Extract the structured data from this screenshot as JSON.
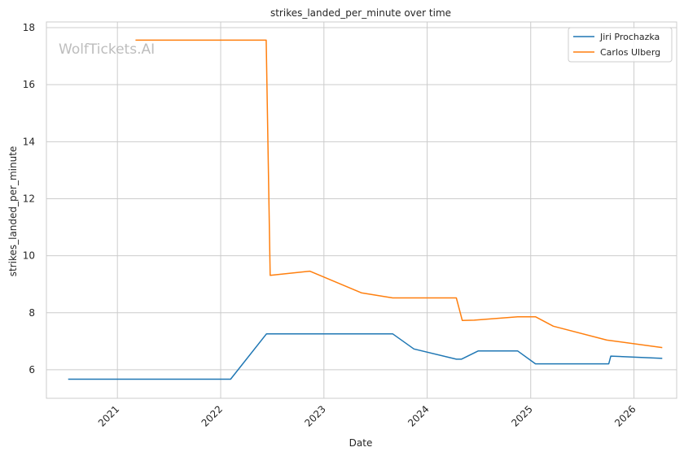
{
  "chart_data": {
    "type": "line",
    "title": "strikes_landed_per_minute over time",
    "xlabel": "Date",
    "ylabel": "strikes_landed_per_minute",
    "xlim": [
      "2020-04-25",
      "2026-06-01"
    ],
    "ylim": [
      5.0,
      18.2
    ],
    "x_ticks": [
      "2021",
      "2022",
      "2023",
      "2024",
      "2025",
      "2026"
    ],
    "y_ticks": [
      6,
      8,
      10,
      12,
      14,
      16,
      18
    ],
    "grid": true,
    "legend_position": "top-right",
    "watermark": "WolfTickets.AI",
    "series": [
      {
        "name": "Jiri Prochazka",
        "color": "#1f77b4",
        "points": [
          {
            "x": "2020-07-11",
            "y": 5.67
          },
          {
            "x": "2022-02-05",
            "y": 5.67
          },
          {
            "x": "2022-06-12",
            "y": 7.26
          },
          {
            "x": "2023-09-01",
            "y": 7.26
          },
          {
            "x": "2023-11-15",
            "y": 6.73
          },
          {
            "x": "2024-04-13",
            "y": 6.37
          },
          {
            "x": "2024-05-01",
            "y": 6.37
          },
          {
            "x": "2024-06-29",
            "y": 6.66
          },
          {
            "x": "2024-11-16",
            "y": 6.66
          },
          {
            "x": "2025-01-18",
            "y": 6.21
          },
          {
            "x": "2025-10-04",
            "y": 6.21
          },
          {
            "x": "2025-10-11",
            "y": 6.48
          },
          {
            "x": "2026-04-11",
            "y": 6.4
          }
        ]
      },
      {
        "name": "Carlos Ulberg",
        "color": "#ff7f0e",
        "points": [
          {
            "x": "2021-03-06",
            "y": 17.56
          },
          {
            "x": "2022-06-11",
            "y": 17.56
          },
          {
            "x": "2022-06-25",
            "y": 9.31
          },
          {
            "x": "2022-11-12",
            "y": 9.46
          },
          {
            "x": "2023-05-13",
            "y": 8.7
          },
          {
            "x": "2023-09-01",
            "y": 8.52
          },
          {
            "x": "2024-04-13",
            "y": 8.52
          },
          {
            "x": "2024-05-04",
            "y": 7.73
          },
          {
            "x": "2024-06-15",
            "y": 7.74
          },
          {
            "x": "2024-11-16",
            "y": 7.86
          },
          {
            "x": "2025-01-18",
            "y": 7.86
          },
          {
            "x": "2025-03-22",
            "y": 7.53
          },
          {
            "x": "2025-09-27",
            "y": 7.04
          },
          {
            "x": "2026-04-11",
            "y": 6.78
          }
        ]
      }
    ]
  }
}
